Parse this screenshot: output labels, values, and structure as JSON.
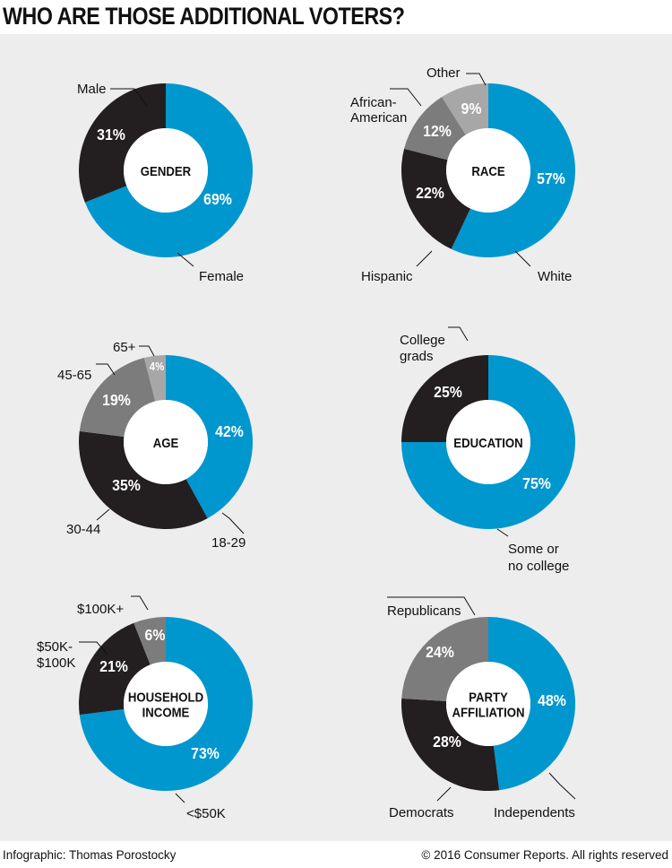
{
  "title": "WHO ARE THOSE ADDITIONAL VOTERS?",
  "footer": {
    "credit": "Infographic: Thomas Porostocky",
    "copyright": "© 2016 Consumer Reports. All rights reserved"
  },
  "colors": {
    "blue": "#0097cf",
    "black": "#231f20",
    "dark_gray": "#7c7c7c",
    "light_gray": "#a7a7a7",
    "panel": "#ededed"
  },
  "chart_data": [
    {
      "type": "pie",
      "title": "GENDER",
      "slices": [
        {
          "label": "Female",
          "value": 69,
          "display": "69%",
          "color": "blue"
        },
        {
          "label": "Male",
          "value": 31,
          "display": "31%",
          "color": "black"
        }
      ]
    },
    {
      "type": "pie",
      "title": "RACE",
      "slices": [
        {
          "label": "White",
          "value": 57,
          "display": "57%",
          "color": "blue"
        },
        {
          "label": "Hispanic",
          "value": 22,
          "display": "22%",
          "color": "black"
        },
        {
          "label": "African-American",
          "value": 12,
          "display": "12%",
          "color": "dark_gray"
        },
        {
          "label": "Other",
          "value": 9,
          "display": "9%",
          "color": "light_gray"
        }
      ]
    },
    {
      "type": "pie",
      "title": "AGE",
      "slices": [
        {
          "label": "18-29",
          "value": 42,
          "display": "42%",
          "color": "blue"
        },
        {
          "label": "30-44",
          "value": 35,
          "display": "35%",
          "color": "black"
        },
        {
          "label": "45-65",
          "value": 19,
          "display": "19%",
          "color": "dark_gray"
        },
        {
          "label": "65+",
          "value": 4,
          "display": "4%",
          "color": "light_gray"
        }
      ]
    },
    {
      "type": "pie",
      "title": "EDUCATION",
      "slices": [
        {
          "label": "Some or no college",
          "value": 75,
          "display": "75%",
          "color": "blue"
        },
        {
          "label": "College grads",
          "value": 25,
          "display": "25%",
          "color": "black"
        }
      ]
    },
    {
      "type": "pie",
      "title": "HOUSEHOLD INCOME",
      "slices": [
        {
          "label": "<$50K",
          "value": 73,
          "display": "73%",
          "color": "blue"
        },
        {
          "label": "$50K-$100K",
          "value": 21,
          "display": "21%",
          "color": "black"
        },
        {
          "label": "$100K+",
          "value": 6,
          "display": "6%",
          "color": "dark_gray"
        }
      ]
    },
    {
      "type": "pie",
      "title": "PARTY AFFILIATION",
      "slices": [
        {
          "label": "Independents",
          "value": 48,
          "display": "48%",
          "color": "blue"
        },
        {
          "label": "Democrats",
          "value": 28,
          "display": "28%",
          "color": "black"
        },
        {
          "label": "Republicans",
          "value": 24,
          "display": "24%",
          "color": "dark_gray"
        }
      ]
    }
  ]
}
